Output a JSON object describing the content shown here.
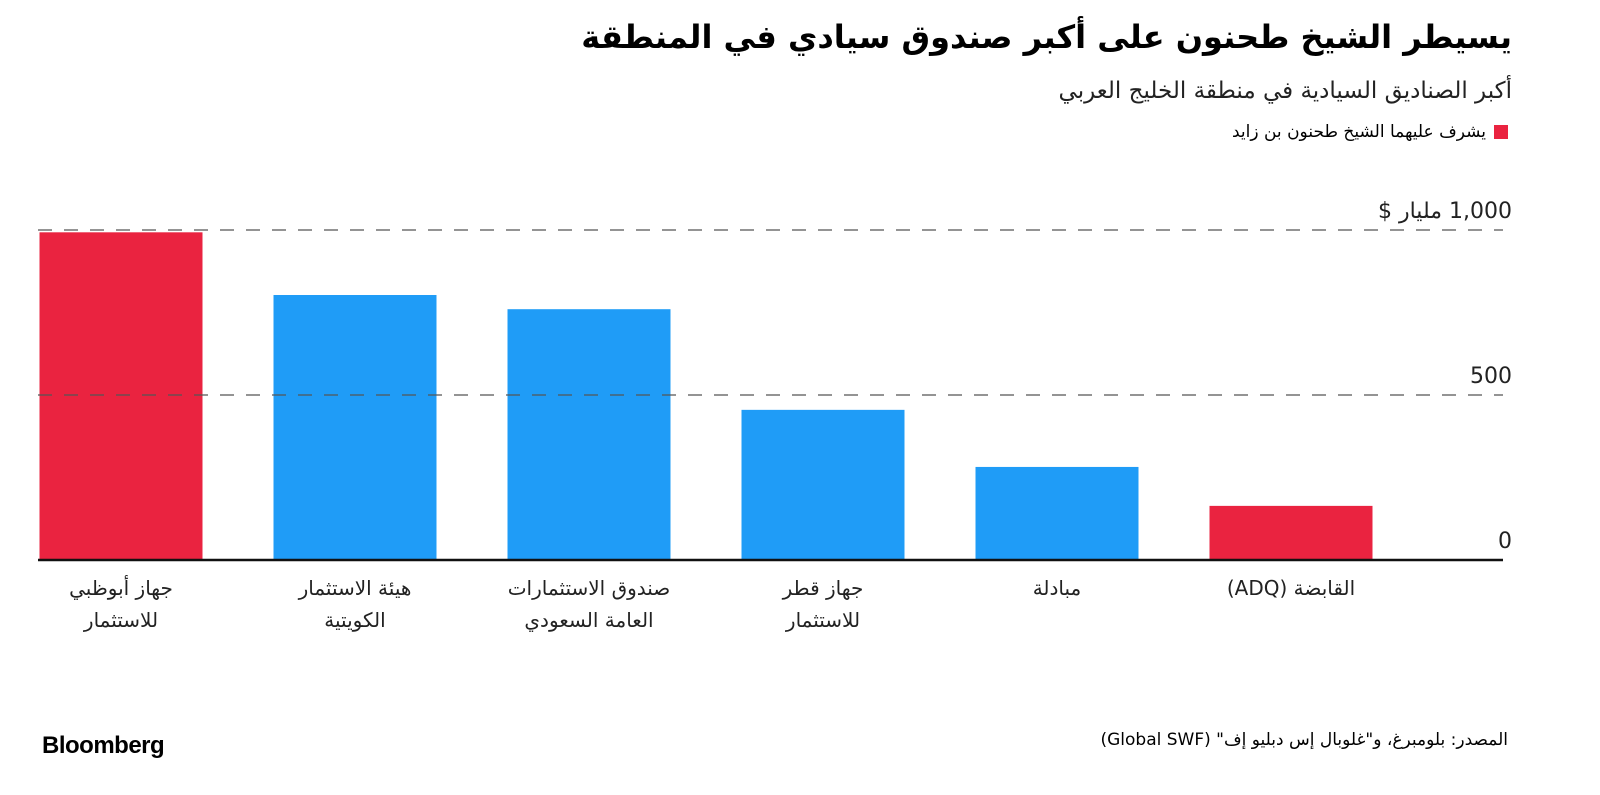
{
  "chart_data": {
    "type": "bar",
    "title": "يسيطر الشيخ طحنون على أكبر صندوق سيادي في المنطقة",
    "subtitle": "أكبر الصناديق السيادية في منطقة الخليج العربي",
    "legend": {
      "label": "يشرف عليهما الشيخ طحنون بن زايد",
      "color": "#ea2340"
    },
    "categories": [
      "جهاز أبوظبي\nللاستثمار",
      "هيئة الاستثمار\nالكويتية",
      "صندوق الاستثمارات\nالعامة السعودي",
      "جهاز قطر\nللاستثمار",
      "مبادلة",
      "القابضة (ADQ)"
    ],
    "values": [
      993,
      803,
      760,
      455,
      282,
      164
    ],
    "colors": [
      "#ea2340",
      "#1f9cf7",
      "#1f9cf7",
      "#1f9cf7",
      "#1f9cf7",
      "#ea2340"
    ],
    "ylim": [
      0,
      1000
    ],
    "yticks": [
      0,
      500,
      {
        "value": 1000,
        "label": "1,000 مليار $"
      }
    ],
    "grid": true,
    "source": "المصدر: بلومبرغ، و\"غلوبال إس دبليو إف\" (Global SWF)",
    "brand": "Bloomberg"
  }
}
